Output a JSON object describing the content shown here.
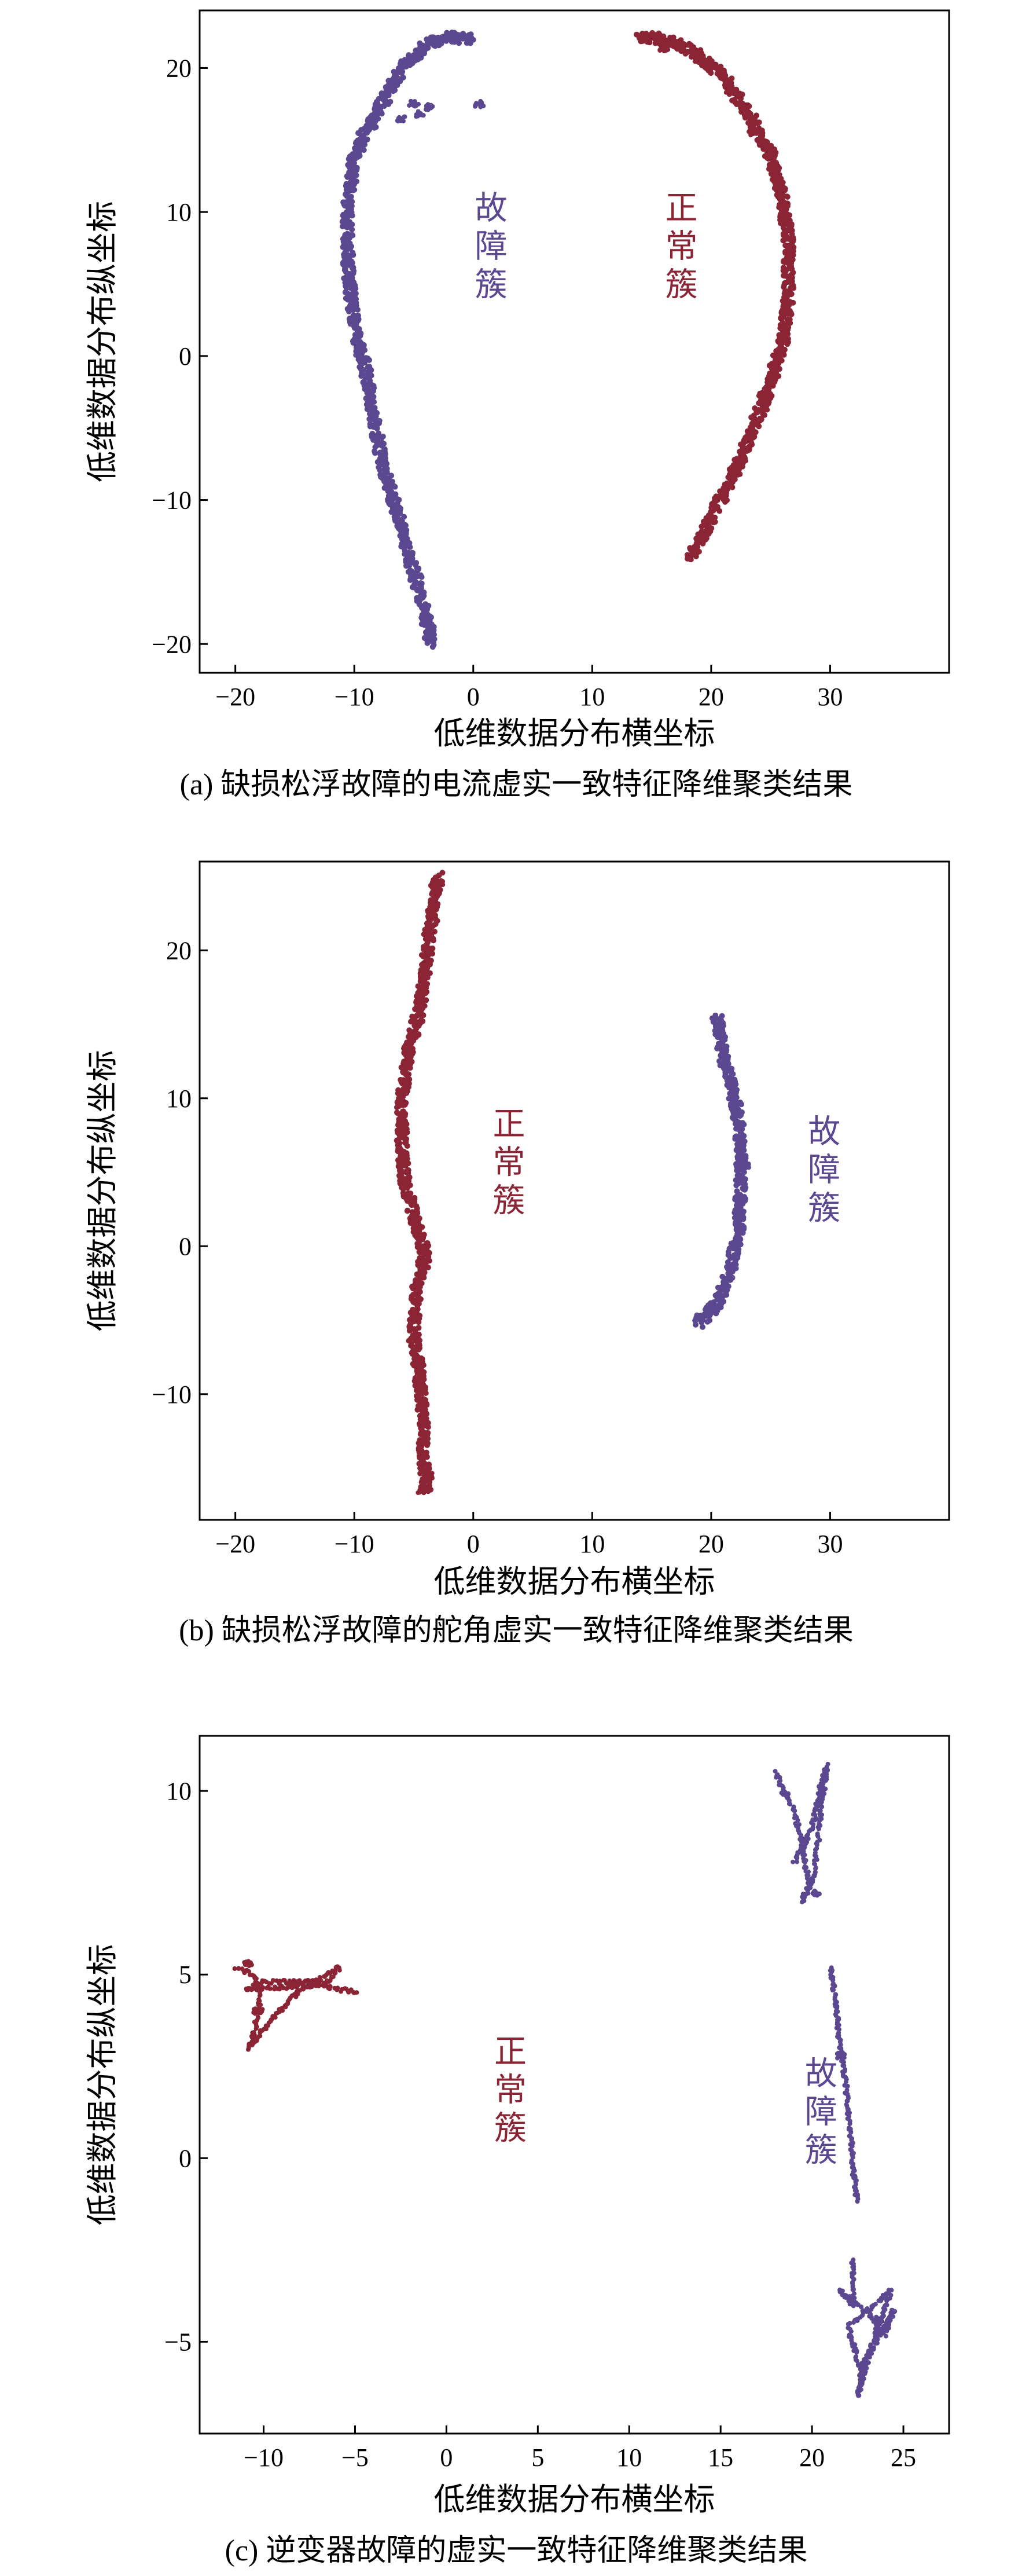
{
  "colors": {
    "normal": "#8b2535",
    "fault": "#5b4890",
    "axis": "#000000"
  },
  "chart_data": [
    {
      "type": "scatter",
      "caption": "(a) 缺损松浮故障的电流虚实一致特征降维聚类结果",
      "xlabel": "低维数据分布横坐标",
      "ylabel": "低维数据分布纵坐标",
      "xlim": [
        -23,
        40
      ],
      "ylim": [
        -22,
        24
      ],
      "xticks": [
        -20,
        -10,
        0,
        10,
        20,
        30
      ],
      "xtick_labels": [
        "−20",
        "−10",
        "0",
        "10",
        "20",
        "30"
      ],
      "yticks": [
        -20,
        -10,
        0,
        10,
        20
      ],
      "ytick_labels": [
        "−20",
        "−10",
        "0",
        "10",
        "20"
      ],
      "grid": false,
      "annotations": [
        {
          "text": "故障簇",
          "color": "fault",
          "x": 1.5,
          "y": 9.5
        },
        {
          "text": "正常簇",
          "color": "normal",
          "x": 17.5,
          "y": 9.5
        }
      ],
      "series": [
        {
          "color": "fault",
          "points": [
            [
              0,
              22
            ],
            [
              -2,
              22.2
            ],
            [
              -4,
              21.5
            ],
            [
              -6,
              20
            ],
            [
              -8,
              17
            ],
            [
              -10,
              14
            ],
            [
              -10.6,
              10
            ],
            [
              -10.5,
              6
            ],
            [
              -10,
              2
            ],
            [
              -9,
              -1
            ],
            [
              -8.5,
              -4
            ],
            [
              -7.5,
              -8
            ],
            [
              -6,
              -12
            ],
            [
              -5,
              -15
            ],
            [
              -4,
              -18
            ],
            [
              -3.5,
              -20
            ]
          ],
          "extra_points": [
            [
              -5,
              17.5
            ],
            [
              -6,
              16.5
            ],
            [
              -3.8,
              17.3
            ],
            [
              0.5,
              17.5
            ],
            [
              -4.5,
              16.8
            ]
          ]
        },
        {
          "color": "normal",
          "points": [
            [
              14,
              22.2
            ],
            [
              16,
              22
            ],
            [
              18.5,
              21.2
            ],
            [
              21,
              19.5
            ],
            [
              23,
              17
            ],
            [
              25,
              14
            ],
            [
              26,
              11
            ],
            [
              26.5,
              8
            ],
            [
              26.5,
              4
            ],
            [
              26,
              1
            ],
            [
              25,
              -2
            ],
            [
              23.5,
              -5
            ],
            [
              22,
              -8
            ],
            [
              20.5,
              -10.5
            ],
            [
              19,
              -13
            ],
            [
              18.2,
              -14
            ]
          ],
          "extra_points": [
            [
              16,
              21.3
            ],
            [
              19,
              20.5
            ],
            [
              21.5,
              18.5
            ],
            [
              23.5,
              15.5
            ],
            [
              25.5,
              12.5
            ]
          ]
        }
      ]
    },
    {
      "type": "scatter",
      "caption": "(b) 缺损松浮故障的舵角虚实一致特征降维聚类结果",
      "xlabel": "低维数据分布横坐标",
      "ylabel": "低维数据分布纵坐标",
      "xlim": [
        -23,
        40
      ],
      "ylim": [
        -18.5,
        26
      ],
      "xticks": [
        -20,
        -10,
        0,
        10,
        20,
        30
      ],
      "xtick_labels": [
        "−20",
        "−10",
        "0",
        "10",
        "20",
        "30"
      ],
      "yticks": [
        -10,
        0,
        10,
        20
      ],
      "ytick_labels": [
        "−10",
        "0",
        "10",
        "20"
      ],
      "grid": false,
      "annotations": [
        {
          "text": "正常簇",
          "color": "normal",
          "x": 3,
          "y": 7.5
        },
        {
          "text": "故障簇",
          "color": "fault",
          "x": 29.5,
          "y": 7
        }
      ],
      "series": [
        {
          "color": "normal",
          "points": [
            [
              -3,
              25
            ],
            [
              -3.5,
              22
            ],
            [
              -4,
              19
            ],
            [
              -4.5,
              16
            ],
            [
              -5.5,
              13
            ],
            [
              -6,
              10
            ],
            [
              -6,
              7
            ],
            [
              -5.7,
              4
            ],
            [
              -4.8,
              1.5
            ],
            [
              -4,
              -0.5
            ],
            [
              -4.8,
              -3
            ],
            [
              -5,
              -6
            ],
            [
              -4.5,
              -9
            ],
            [
              -4.2,
              -12
            ],
            [
              -4.2,
              -14
            ],
            [
              -4,
              -16.5
            ]
          ],
          "extra_points": [
            [
              -4.3,
              -16.5
            ],
            [
              -3.8,
              -15.5
            ],
            [
              -2.9,
              24.5
            ]
          ]
        },
        {
          "color": "fault",
          "points": [
            [
              20.5,
              15.5
            ],
            [
              21,
              13
            ],
            [
              22,
              10
            ],
            [
              22.5,
              7
            ],
            [
              22.5,
              4
            ],
            [
              22.3,
              1
            ],
            [
              21.5,
              -2
            ],
            [
              20.5,
              -4
            ],
            [
              18.8,
              -5.2
            ]
          ],
          "extra_points": [
            [
              20.7,
              14.8
            ],
            [
              22.8,
              5.5
            ]
          ]
        }
      ]
    },
    {
      "type": "scatter",
      "caption": "(c) 逆变器故障的虚实一致特征降维聚类结果",
      "xlabel": "低维数据分布横坐标",
      "ylabel": "低维数据分布纵坐标",
      "xlim": [
        -13.5,
        27.5
      ],
      "ylim": [
        -7.5,
        11.5
      ],
      "xticks": [
        -10,
        -5,
        0,
        5,
        10,
        15,
        20,
        25
      ],
      "xtick_labels": [
        "−10",
        "−5",
        "0",
        "5",
        "10",
        "15",
        "20",
        "25"
      ],
      "yticks": [
        -5,
        0,
        5,
        10
      ],
      "ytick_labels": [
        "−5",
        "0",
        "5",
        "10"
      ],
      "grid": false,
      "annotations": [
        {
          "text": "正常簇",
          "color": "normal",
          "x": 3.5,
          "y": 2.6
        },
        {
          "text": "故障簇",
          "color": "fault",
          "x": 20.5,
          "y": 2.0
        }
      ],
      "series": [
        {
          "color": "normal",
          "points": [
            [
              -11.5,
              5.2
            ],
            [
              -10.5,
              5.0
            ],
            [
              -10.2,
              4.3
            ],
            [
              -10.5,
              3.5
            ],
            [
              -10.8,
              3.0
            ],
            [
              -9.5,
              3.8
            ],
            [
              -8,
              4.6
            ],
            [
              -6.5,
              5.0
            ],
            [
              -5.8,
              5.2
            ],
            [
              -6.5,
              4.8
            ],
            [
              -8,
              4.8
            ],
            [
              -10,
              4.8
            ],
            [
              -11,
              4.6
            ],
            [
              -7,
              4.7
            ],
            [
              -4.8,
              4.5
            ]
          ],
          "extra_points": [
            [
              -10.8,
              5.3
            ],
            [
              -10.3,
              4.0
            ]
          ]
        },
        {
          "color": "fault",
          "points": [
            [
              18,
              10.5
            ],
            [
              19,
              9.5
            ],
            [
              19.5,
              8.5
            ],
            [
              19.8,
              7.5
            ],
            [
              19.5,
              7.0
            ],
            [
              20,
              7.5
            ],
            [
              20.3,
              8.5
            ],
            [
              20.5,
              9.5
            ],
            [
              20.8,
              10.7
            ],
            [
              20.5,
              10.2
            ],
            [
              20,
              9
            ],
            [
              19,
              8
            ]
          ],
          "extra_points": [
            [
              18.5,
              9.9
            ],
            [
              20.2,
              7.2
            ]
          ]
        },
        {
          "color": "fault",
          "points": [
            [
              21,
              5.2
            ],
            [
              21.3,
              4.2
            ],
            [
              21.5,
              3.2
            ],
            [
              21.8,
              2.2
            ],
            [
              22,
              1.2
            ],
            [
              22.2,
              0.2
            ],
            [
              22.3,
              -0.5
            ],
            [
              22.5,
              -1.2
            ]
          ],
          "extra_points": [
            [
              21.6,
              2.8
            ]
          ]
        },
        {
          "color": "fault",
          "points": [
            [
              22.2,
              -2.8
            ],
            [
              22.3,
              -4
            ],
            [
              21.5,
              -3.6
            ],
            [
              23,
              -4.2
            ],
            [
              24,
              -4.8
            ],
            [
              24.5,
              -4.1
            ],
            [
              23.5,
              -5.0
            ],
            [
              22.8,
              -5.6
            ],
            [
              22.5,
              -6.5
            ],
            [
              23.2,
              -5.2
            ],
            [
              24.3,
              -3.6
            ],
            [
              22,
              -4.6
            ],
            [
              22.8,
              -6.1
            ]
          ],
          "extra_points": [
            [
              23.7,
              -4.4
            ]
          ]
        }
      ]
    }
  ]
}
